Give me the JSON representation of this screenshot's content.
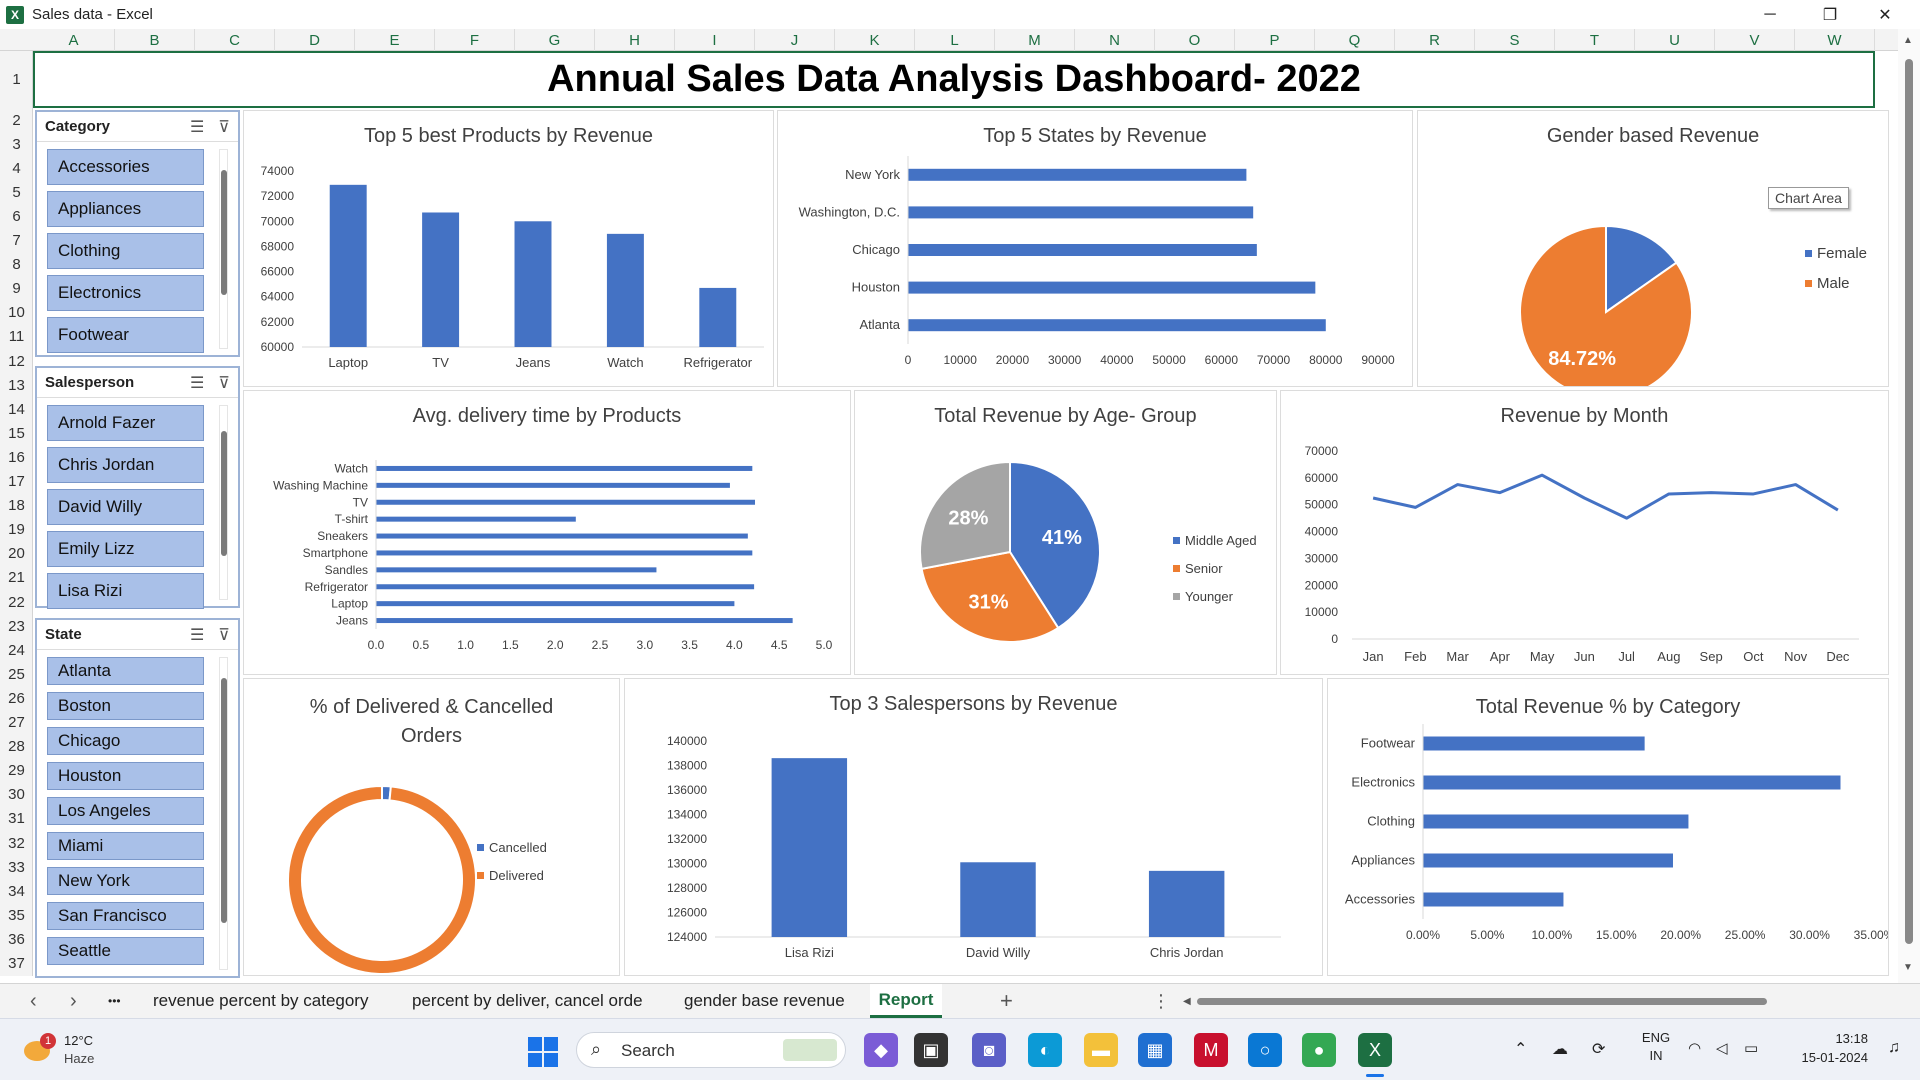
{
  "window": {
    "app_icon": "X",
    "title": "Sales data - Excel",
    "minimize": "─",
    "restore": "❐",
    "close": "✕"
  },
  "columns": [
    "A",
    "B",
    "C",
    "D",
    "E",
    "F",
    "G",
    "H",
    "I",
    "J",
    "K",
    "L",
    "M",
    "N",
    "O",
    "P",
    "Q",
    "R",
    "S",
    "T",
    "U",
    "V",
    "W"
  ],
  "rows": [
    "1",
    "2",
    "3",
    "4",
    "5",
    "6",
    "7",
    "8",
    "9",
    "10",
    "11",
    "12",
    "13",
    "14",
    "15",
    "16",
    "17",
    "18",
    "19",
    "20",
    "21",
    "22",
    "23",
    "24",
    "25",
    "26",
    "27",
    "28",
    "29",
    "30",
    "31",
    "32",
    "33",
    "34",
    "35",
    "36",
    "37"
  ],
  "dashboard_title": "Annual Sales Data Analysis Dashboard- 2022",
  "slicers": {
    "category": {
      "title": "Category",
      "items": [
        "Accessories",
        "Appliances",
        "Clothing",
        "Electronics",
        "Footwear"
      ]
    },
    "salesperson": {
      "title": "Salesperson",
      "items": [
        "Arnold Fazer",
        "Chris Jordan",
        "David Willy",
        "Emily Lizz",
        "Lisa Rizi"
      ]
    },
    "state": {
      "title": "State",
      "items": [
        "Atlanta",
        "Boston",
        "Chicago",
        "Houston",
        "Los Angeles",
        "Miami",
        "New York",
        "San Francisco",
        "Seattle"
      ]
    }
  },
  "chart_data": [
    {
      "id": "top5_products",
      "type": "bar",
      "title": "Top 5 best Products by Revenue",
      "categories": [
        "Laptop",
        "TV",
        "Jeans",
        "Watch",
        "Refrigerator"
      ],
      "values": [
        72900,
        70700,
        70000,
        69000,
        64700
      ],
      "ylim": [
        60000,
        74000
      ],
      "yticks": [
        "60000",
        "62000",
        "64000",
        "66000",
        "68000",
        "70000",
        "72000",
        "74000"
      ],
      "color": "#4472c4"
    },
    {
      "id": "top5_states",
      "type": "bar",
      "orientation": "horizontal",
      "title": "Top 5 States by Revenue",
      "categories": [
        "New York",
        "Washington, D.C.",
        "Chicago",
        "Houston",
        "Atlanta"
      ],
      "values": [
        64800,
        66100,
        66800,
        78000,
        80000
      ],
      "xlim": [
        0,
        90000
      ],
      "xticks": [
        "0",
        "10000",
        "20000",
        "30000",
        "40000",
        "50000",
        "60000",
        "70000",
        "80000",
        "90000"
      ],
      "color": "#4472c4"
    },
    {
      "id": "gender_revenue",
      "type": "pie",
      "title": "Gender based Revenue",
      "categories": [
        "Female",
        "Male"
      ],
      "values": [
        15.28,
        84.72
      ],
      "labels": [
        "",
        "84.72%"
      ],
      "colors": [
        "#4472c4",
        "#ed7d31"
      ],
      "legend": "right"
    },
    {
      "id": "avg_delivery",
      "type": "bar",
      "orientation": "horizontal",
      "title": "Avg. delivery time by Products",
      "categories": [
        "Watch",
        "Washing Machine",
        "TV",
        "T-shirt",
        "Sneakers",
        "Smartphone",
        "Sandles",
        "Refrigerator",
        "Laptop",
        "Jeans"
      ],
      "values": [
        4.2,
        3.95,
        4.23,
        2.23,
        4.15,
        4.2,
        3.13,
        4.22,
        4.0,
        4.65
      ],
      "xlim": [
        0,
        5
      ],
      "xticks": [
        "0.0",
        "0.5",
        "1.0",
        "1.5",
        "2.0",
        "2.5",
        "3.0",
        "3.5",
        "4.0",
        "4.5",
        "5.0"
      ],
      "color": "#4472c4"
    },
    {
      "id": "age_group",
      "type": "pie",
      "title": "Total Revenue by Age- Group",
      "categories": [
        "Middle Aged",
        "Senior",
        "Younger"
      ],
      "values": [
        41,
        31,
        28
      ],
      "labels": [
        "41%",
        "31%",
        "28%"
      ],
      "colors": [
        "#4472c4",
        "#ed7d31",
        "#a5a5a5"
      ],
      "legend": "right"
    },
    {
      "id": "revenue_month",
      "type": "line",
      "title": "Revenue by Month",
      "categories": [
        "Jan",
        "Feb",
        "Mar",
        "Apr",
        "May",
        "Jun",
        "Jul",
        "Aug",
        "Sep",
        "Oct",
        "Nov",
        "Dec"
      ],
      "values": [
        52500,
        49000,
        57500,
        54500,
        61000,
        52500,
        45000,
        54000,
        54500,
        54000,
        57500,
        48000
      ],
      "ylim": [
        0,
        70000
      ],
      "yticks": [
        "0",
        "10000",
        "20000",
        "30000",
        "40000",
        "50000",
        "60000",
        "70000"
      ],
      "color": "#4472c4"
    },
    {
      "id": "delivered_cancelled",
      "type": "pie",
      "subtype": "donut",
      "title_lines": [
        "% of Delivered & Cancelled",
        "Orders"
      ],
      "categories": [
        "Cancelled",
        "Delivered"
      ],
      "values": [
        1.5,
        98.5
      ],
      "colors": [
        "#4472c4",
        "#ed7d31"
      ],
      "legend": "right"
    },
    {
      "id": "top3_salespersons",
      "type": "bar",
      "title": "Top 3 Salespersons by Revenue",
      "categories": [
        "Lisa Rizi",
        "David Willy",
        "Chris Jordan"
      ],
      "values": [
        138600,
        130100,
        129400
      ],
      "ylim": [
        124000,
        140000
      ],
      "yticks": [
        "124000",
        "126000",
        "128000",
        "130000",
        "132000",
        "134000",
        "136000",
        "138000",
        "140000"
      ],
      "color": "#4472c4"
    },
    {
      "id": "category_revenue_pct",
      "type": "bar",
      "orientation": "horizontal",
      "title": "Total Revenue % by Category",
      "categories": [
        "Footwear",
        "Electronics",
        "Clothing",
        "Appliances",
        "Accessories"
      ],
      "values": [
        17.2,
        32.4,
        20.6,
        19.4,
        10.9
      ],
      "xlim": [
        0,
        35
      ],
      "xticks": [
        "0.00%",
        "5.00%",
        "10.00%",
        "15.00%",
        "20.00%",
        "25.00%",
        "30.00%",
        "35.00%"
      ],
      "color": "#4472c4"
    }
  ],
  "tooltip": "Chart Area",
  "sheet_tabs": [
    "revenue percent by category",
    "percent by deliver, cancel orde",
    "gender base revenue",
    "Report"
  ],
  "active_tab": "Report",
  "tab_nav": {
    "prev": "‹",
    "next": "›",
    "more": "•••",
    "add": "+",
    "options": "⋮"
  },
  "taskbar": {
    "weather_temp": "12°C",
    "weather_desc": "Haze",
    "weather_badge": "1",
    "search_placeholder": "Search",
    "lang_top": "ENG",
    "lang_bottom": "IN",
    "time": "13:18",
    "date": "15-01-2024"
  }
}
